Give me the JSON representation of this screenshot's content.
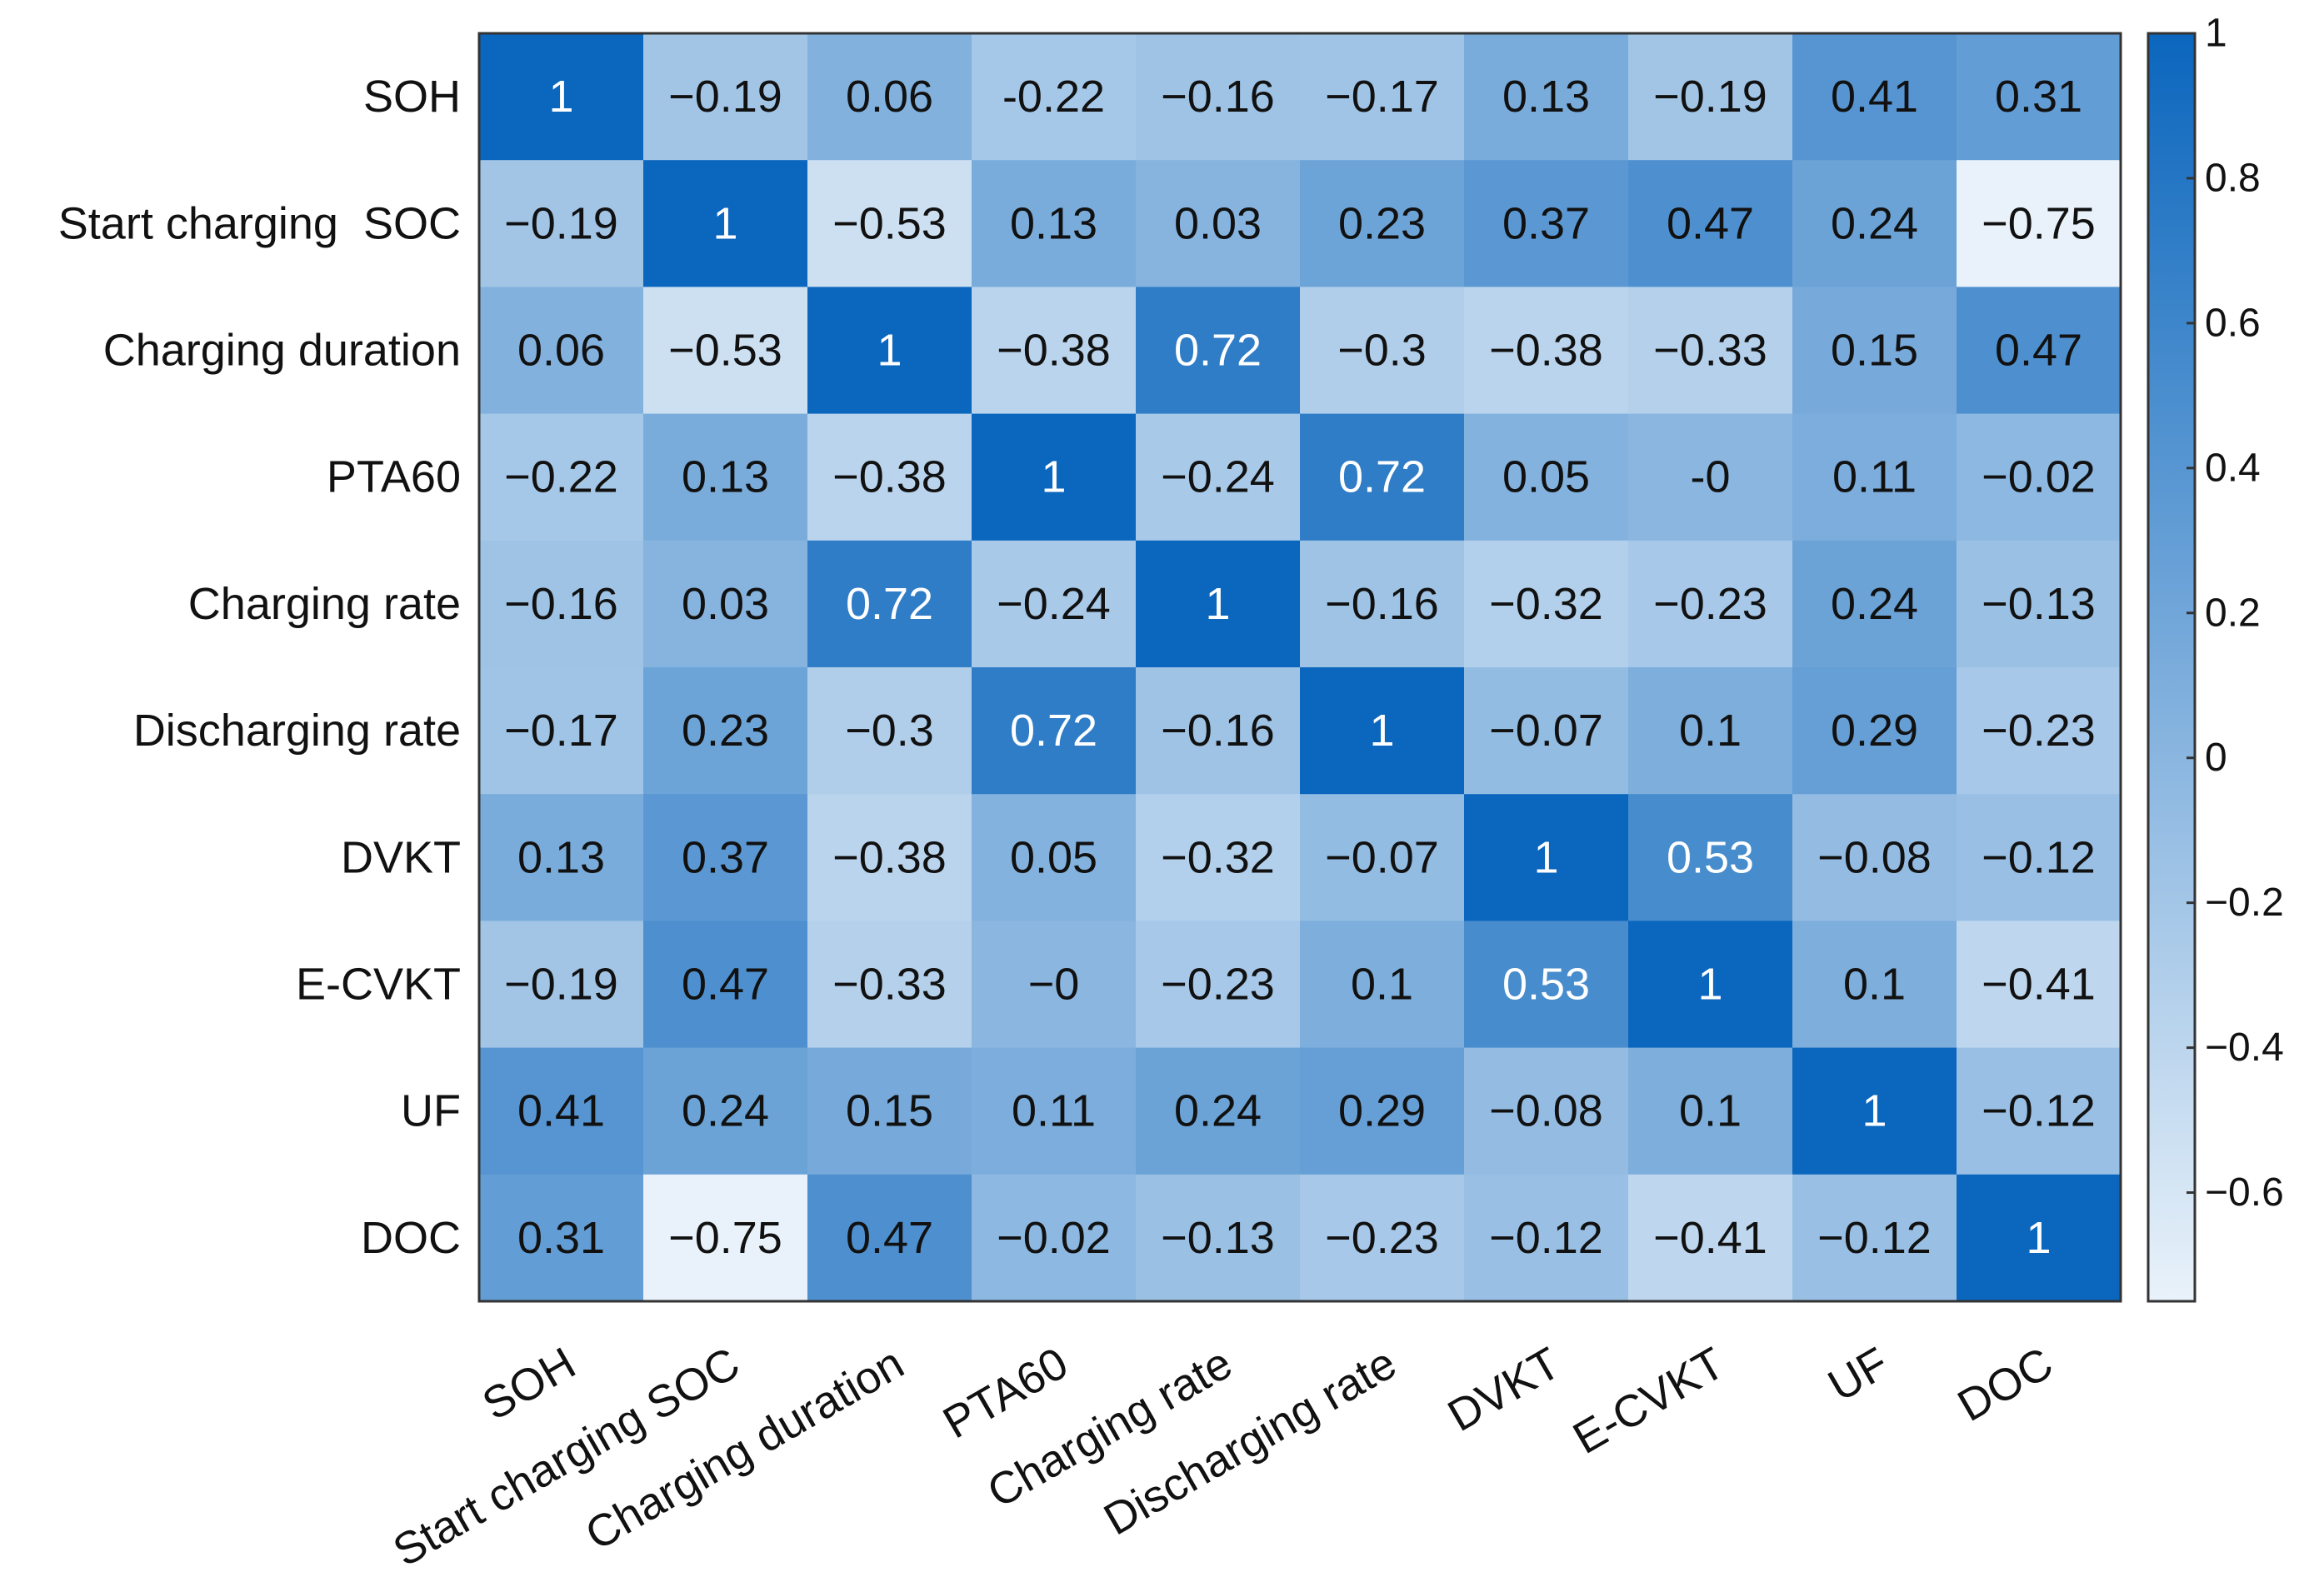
{
  "chart_data": {
    "type": "heatmap",
    "title": "",
    "row_labels": [
      "SOH",
      "Start charging  SOC",
      "Charging duration",
      "PTA60",
      "Charging rate",
      "Discharging rate",
      "DVKT",
      "E-CVKT",
      "UF",
      "DOC"
    ],
    "column_labels": [
      "SOH",
      "Start charging SOC",
      "Charging duration",
      "PTA60",
      "Charging rate",
      "Discharging rate",
      "DVKT",
      "E-CVKT",
      "UF",
      "DOC"
    ],
    "value_labels": [
      [
        "1",
        "−0.19",
        "0.06",
        "-0.22",
        "−0.16",
        "−0.17",
        "0.13",
        "−0.19",
        "0.41",
        "0.31"
      ],
      [
        "−0.19",
        "1",
        "−0.53",
        "0.13",
        "0.03",
        "0.23",
        "0.37",
        "0.47",
        "0.24",
        "−0.75"
      ],
      [
        "0.06",
        "−0.53",
        "1",
        "−0.38",
        "0.72",
        "−0.3",
        "−0.38",
        "−0.33",
        "0.15",
        "0.47"
      ],
      [
        "−0.22",
        "0.13",
        "−0.38",
        "1",
        "−0.24",
        "0.72",
        "0.05",
        "-0",
        "0.11",
        "−0.02"
      ],
      [
        "−0.16",
        "0.03",
        "0.72",
        "−0.24",
        "1",
        "−0.16",
        "−0.32",
        "−0.23",
        "0.24",
        "−0.13"
      ],
      [
        "−0.17",
        "0.23",
        "−0.3",
        "0.72",
        "−0.16",
        "1",
        "−0.07",
        "0.1",
        "0.29",
        "−0.23"
      ],
      [
        "0.13",
        "0.37",
        "−0.38",
        "0.05",
        "−0.32",
        "−0.07",
        "1",
        "0.53",
        "−0.08",
        "−0.12"
      ],
      [
        "−0.19",
        "0.47",
        "−0.33",
        "−0",
        "−0.23",
        "0.1",
        "0.53",
        "1",
        "0.1",
        "−0.41"
      ],
      [
        "0.41",
        "0.24",
        "0.15",
        "0.11",
        "0.24",
        "0.29",
        "−0.08",
        "0.1",
        "1",
        "−0.12"
      ],
      [
        "0.31",
        "−0.75",
        "0.47",
        "−0.02",
        "−0.13",
        "−0.23",
        "−0.12",
        "−0.41",
        "−0.12",
        "1"
      ]
    ],
    "colorbar": {
      "range": [
        -0.75,
        1
      ],
      "ticks": [
        1,
        0.8,
        0.6,
        0.4,
        0.2,
        0,
        -0.2,
        -0.4,
        -0.6
      ],
      "tick_labels": [
        "1",
        "0.8",
        "0.6",
        "0.4",
        "0.2",
        "0",
        "−0.2",
        "−0.4",
        "−0.6"
      ],
      "color_low": "#e9f2fa",
      "color_high": "#0b66bd"
    },
    "white_text_threshold": 0.5
  }
}
